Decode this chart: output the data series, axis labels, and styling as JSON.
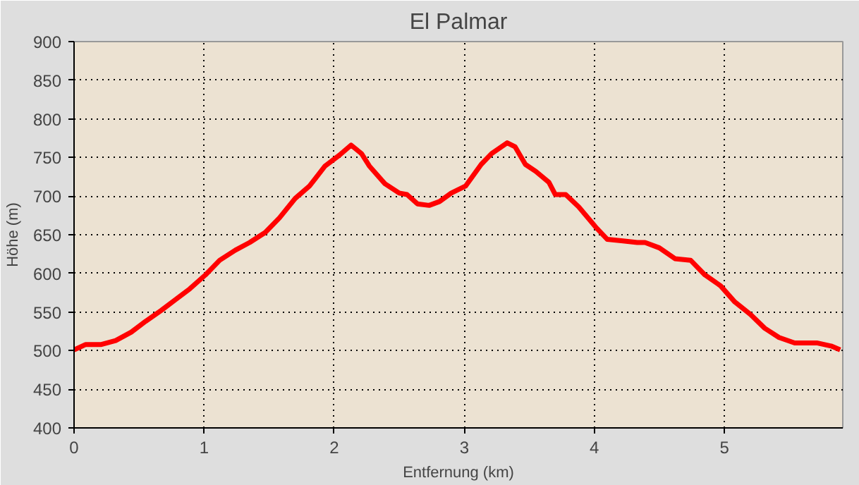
{
  "chart_data": {
    "type": "line",
    "title": "El Palmar",
    "xlabel": "Entfernung (km)",
    "ylabel": "Höhe (m)",
    "xlim": [
      0,
      5.91
    ],
    "xticks": [
      0,
      1,
      2,
      3,
      4,
      5
    ],
    "ylim": [
      400,
      900
    ],
    "yticks": [
      400,
      450,
      500,
      550,
      600,
      650,
      700,
      750,
      800,
      850,
      900
    ],
    "grid": true,
    "line_style": "solid",
    "series": [
      {
        "color": "#ff0000",
        "x": [
          0,
          0.09,
          0.21,
          0.32,
          0.44,
          0.55,
          0.67,
          0.78,
          0.89,
          1.01,
          1.12,
          1.24,
          1.35,
          1.47,
          1.58,
          1.7,
          1.81,
          1.93,
          2.04,
          2.13,
          2.21,
          2.27,
          2.39,
          2.5,
          2.56,
          2.64,
          2.73,
          2.81,
          2.9,
          3.01,
          3.13,
          3.21,
          3.33,
          3.39,
          3.47,
          3.55,
          3.65,
          3.7,
          3.78,
          3.88,
          3.96,
          4.01,
          4.1,
          4.22,
          4.33,
          4.39,
          4.5,
          4.62,
          4.74,
          4.85,
          4.97,
          5.08,
          5.2,
          5.31,
          5.42,
          5.54,
          5.71,
          5.82,
          5.89
        ],
        "values": [
          501,
          508,
          508,
          513,
          524,
          538,
          552,
          566,
          580,
          598,
          617,
          630,
          640,
          653,
          672,
          697,
          713,
          739,
          753,
          766,
          755,
          739,
          716,
          704,
          702,
          690,
          688,
          693,
          704,
          713,
          741,
          755,
          769,
          764,
          741,
          732,
          718,
          702,
          702,
          686,
          670,
          660,
          644,
          642,
          640,
          640,
          633,
          619,
          617,
          598,
          584,
          563,
          547,
          529,
          517,
          510,
          510,
          506,
          501
        ]
      }
    ]
  }
}
